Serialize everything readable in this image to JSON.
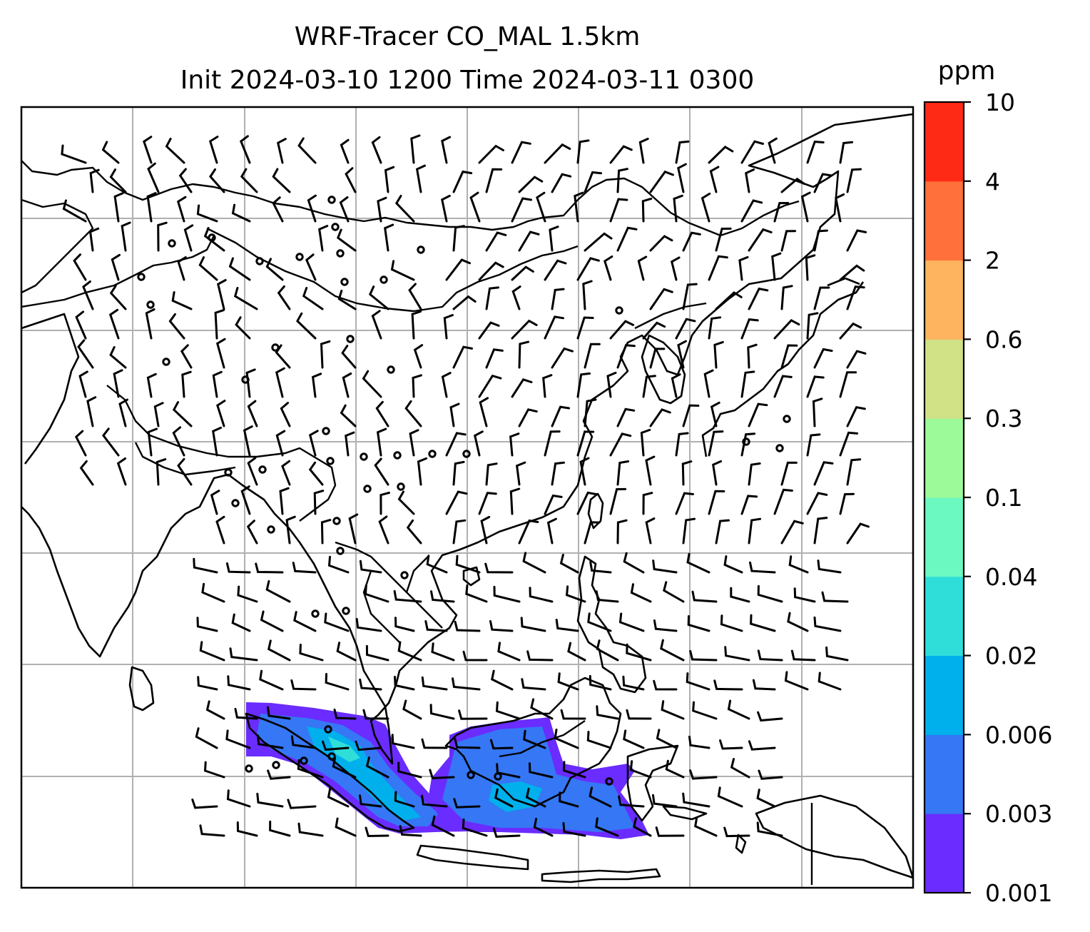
{
  "chart_data": {
    "type": "heatmap",
    "title": "WRF-Tracer CO_MAL 1.5km",
    "subtitle": "Init 2024-03-10 1200 Time 2024-03-11 0300",
    "map": {
      "projection": "lat-lon",
      "gridlines": true,
      "features": [
        "coastlines",
        "country borders",
        "wind barbs"
      ],
      "gridline_color": "#b0b0b0"
    },
    "colorbar": {
      "label": "ppm",
      "ticks": [
        "0.001",
        "0.003",
        "0.006",
        "0.02",
        "0.04",
        "0.1",
        "0.3",
        "0.6",
        "2",
        "4",
        "10"
      ],
      "colors": [
        "#6a2cff",
        "#3577f5",
        "#00b0ec",
        "#2fded9",
        "#6cf9c1",
        "#9cfb98",
        "#d0e186",
        "#feb35f",
        "#ff703b",
        "#ff2a15"
      ]
    },
    "plume": {
      "peak_level": "0.02 - 0.04 ppm",
      "main_level": "0.001 - 0.006 ppm"
    }
  }
}
